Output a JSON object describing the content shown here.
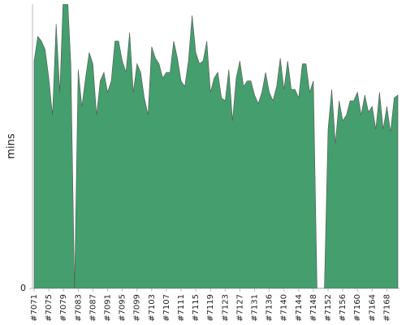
{
  "chart_data": {
    "type": "area",
    "ylabel": "mins",
    "color": "#459e6d",
    "ylim": [
      0,
      100
    ],
    "yticks": [
      0
    ],
    "categories": [
      "#7071",
      null,
      null,
      null,
      "#7075",
      null,
      null,
      null,
      "#7079",
      null,
      null,
      null,
      "#7083",
      null,
      null,
      null,
      "#7087",
      null,
      null,
      null,
      "#7091",
      null,
      null,
      null,
      "#7095",
      null,
      null,
      null,
      "#7099",
      null,
      null,
      null,
      "#7103",
      null,
      null,
      null,
      "#7107",
      null,
      null,
      null,
      "#7111",
      null,
      null,
      null,
      "#7115",
      null,
      null,
      null,
      "#7119",
      null,
      null,
      null,
      "#7123",
      null,
      null,
      null,
      "#7127",
      null,
      null,
      null,
      "#7131",
      null,
      null,
      null,
      "#7136",
      null,
      null,
      null,
      "#7140",
      null,
      null,
      null,
      "#7144",
      null,
      null,
      null,
      "#7148",
      null,
      null,
      null,
      "#7152",
      null,
      null,
      null,
      "#7156",
      null,
      null,
      null,
      "#7160",
      null,
      null,
      null,
      "#7164",
      null,
      null,
      null,
      "#7168",
      null,
      null,
      null
    ],
    "values": [
      80,
      88.6,
      87,
      84,
      74,
      61,
      93,
      69,
      105,
      105,
      79,
      0,
      77,
      64,
      74,
      83,
      79,
      61,
      73,
      76,
      69,
      73,
      87,
      87,
      80,
      76,
      90,
      69,
      79,
      76,
      67,
      61,
      85,
      81,
      79,
      74,
      76,
      76,
      87,
      81,
      73,
      71,
      80,
      96,
      83,
      79,
      80,
      87,
      69,
      74,
      76,
      67,
      66,
      77,
      59,
      74,
      80,
      71,
      73,
      73,
      68,
      65,
      69,
      76,
      69,
      66,
      71,
      81,
      70,
      80,
      70,
      70,
      67,
      79,
      79,
      69,
      73,
      0,
      0,
      0,
      56,
      70,
      51,
      66,
      59,
      61,
      66,
      66,
      69,
      61,
      68,
      62,
      64,
      56,
      69,
      56,
      64,
      55,
      67,
      68
    ]
  }
}
